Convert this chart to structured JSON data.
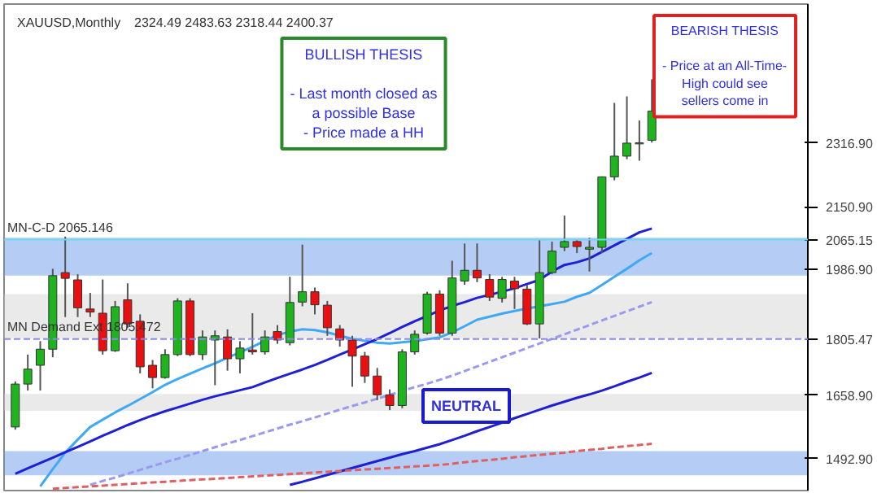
{
  "chart_data": {
    "type": "candlestick",
    "title": "XAUUSD,Monthly",
    "subtitle": "2324.49 2483.63 2318.44 2400.37",
    "categories": [
      null,
      null,
      null,
      null,
      null,
      null,
      null,
      null,
      null,
      null,
      null,
      null,
      null,
      null,
      null,
      null,
      null,
      null,
      null,
      null,
      null,
      null,
      null,
      null,
      null,
      null,
      null,
      null,
      null,
      null,
      null,
      null,
      null,
      null,
      null,
      null,
      null,
      null,
      null,
      null,
      null,
      null,
      null,
      null,
      null,
      null,
      null,
      null,
      null,
      null,
      null,
      null
    ],
    "ohlc": [
      [
        1576,
        1695,
        1569,
        1688
      ],
      [
        1688,
        1765,
        1671,
        1727
      ],
      [
        1737,
        1800,
        1671,
        1779
      ],
      [
        1779,
        1989,
        1758,
        1971
      ],
      [
        1979,
        2073,
        1863,
        1964
      ],
      [
        1960,
        1975,
        1863,
        1887
      ],
      [
        1884,
        1926,
        1863,
        1876
      ],
      [
        1873,
        1961,
        1765,
        1775
      ],
      [
        1775,
        1905,
        1772,
        1890
      ],
      [
        1908,
        1951,
        1835,
        1845
      ],
      [
        1852,
        1870,
        1716,
        1733
      ],
      [
        1737,
        1751,
        1677,
        1705
      ],
      [
        1705,
        1779,
        1702,
        1765
      ],
      [
        1765,
        1912,
        1761,
        1905
      ],
      [
        1905,
        1912,
        1761,
        1765
      ],
      [
        1765,
        1828,
        1751,
        1811
      ],
      [
        1803,
        1828,
        1685,
        1814
      ],
      [
        1811,
        1831,
        1723,
        1754
      ],
      [
        1754,
        1800,
        1716,
        1782
      ],
      [
        1777,
        1873,
        1765,
        1772
      ],
      [
        1772,
        1828,
        1765,
        1811
      ],
      [
        1825,
        1842,
        1793,
        1803
      ],
      [
        1796,
        1968,
        1789,
        1901
      ],
      [
        1902,
        2052,
        1891,
        1929
      ],
      [
        1929,
        1940,
        1870,
        1895
      ],
      [
        1894,
        1905,
        1814,
        1835
      ],
      [
        1832,
        1842,
        1786,
        1803
      ],
      [
        1803,
        1814,
        1681,
        1761
      ],
      [
        1761,
        1772,
        1691,
        1709
      ],
      [
        1709,
        1730,
        1646,
        1660
      ],
      [
        1660,
        1674,
        1620,
        1632
      ],
      [
        1632,
        1779,
        1625,
        1772
      ],
      [
        1772,
        1828,
        1765,
        1818
      ],
      [
        1821,
        1929,
        1817,
        1923
      ],
      [
        1923,
        1933,
        1814,
        1821
      ],
      [
        1821,
        2010,
        1814,
        1965
      ],
      [
        1957,
        2055,
        1947,
        1985
      ],
      [
        1985,
        2055,
        1954,
        1965
      ],
      [
        1961,
        1975,
        1905,
        1915
      ],
      [
        1912,
        1968,
        1901,
        1961
      ],
      [
        1957,
        1968,
        1884,
        1937
      ],
      [
        1936,
        1947,
        1842,
        1845
      ],
      [
        1845,
        2065,
        1807,
        1979
      ],
      [
        1979,
        2060,
        1975,
        2035
      ],
      [
        2045,
        2128,
        2035,
        2060
      ],
      [
        2060,
        2065,
        2030,
        2047
      ],
      [
        2040,
        2070,
        1982,
        2045
      ],
      [
        2045,
        2230,
        2030,
        2229
      ],
      [
        2229,
        2422,
        2220,
        2283
      ],
      [
        2283,
        2439,
        2275,
        2317
      ],
      [
        2315,
        2376,
        2271,
        2318
      ],
      [
        2324.49,
        2483.63,
        2318.44,
        2400.37
      ]
    ],
    "colors": [
      "#1fb41f",
      "#1fb41f",
      "#1fb41f",
      "#1fb41f",
      "#e81010",
      "#e81010",
      "#e81010",
      "#e81010",
      "#1fb41f",
      "#e81010",
      "#e81010",
      "#e81010",
      "#1fb41f",
      "#1fb41f",
      "#e81010",
      "#1fb41f",
      "#1fb41f",
      "#e81010",
      "#1fb41f",
      "#e81010",
      "#1fb41f",
      "#e81010",
      "#1fb41f",
      "#1fb41f",
      "#e81010",
      "#e81010",
      "#e81010",
      "#e81010",
      "#e81010",
      "#e81010",
      "#e81010",
      "#1fb41f",
      "#1fb41f",
      "#1fb41f",
      "#e81010",
      "#1fb41f",
      "#1fb41f",
      "#e81010",
      "#e81010",
      "#1fb41f",
      "#e81010",
      "#e81010",
      "#1fb41f",
      "#1fb41f",
      "#1fb41f",
      "#e81010",
      "#1fb41f",
      "#1fb41f",
      "#1fb41f",
      "#1fb41f",
      "#1fb41f",
      "#1fb41f"
    ],
    "series": [
      {
        "type": "line",
        "color": "#3fa9f5",
        "line_style": "solid",
        "values": [
          null,
          null,
          1421,
          1466,
          1509,
          1543,
          1576,
          1595,
          1614,
          1631,
          1649,
          1667,
          1686,
          1701,
          1715,
          1729,
          1742,
          1757,
          1771,
          1785,
          1801,
          1816,
          1825,
          1831,
          1829,
          1823,
          1814,
          1806,
          1801,
          1796,
          1794,
          1797,
          1800,
          1805,
          1810,
          1823,
          1839,
          1856,
          1864,
          1872,
          1879,
          1885,
          1891,
          1897,
          1903,
          1916,
          1926,
          1947,
          1968,
          1989,
          2011,
          2030
        ]
      },
      {
        "type": "line",
        "color": "#1f1fd6",
        "line_style": "solid",
        "values": [
          1454,
          1468,
          1482,
          1496,
          1510,
          1524,
          1538,
          1553,
          1567,
          1581,
          1594,
          1606,
          1617,
          1627,
          1637,
          1647,
          1656,
          1664,
          1672,
          1680,
          1692,
          1704,
          1715,
          1726,
          1738,
          1751,
          1765,
          1778,
          1792,
          1806,
          1821,
          1837,
          1852,
          1866,
          1880,
          1892,
          1902,
          1913,
          1921,
          1929,
          1938,
          1949,
          1960,
          1982,
          1999,
          2006,
          2016,
          2033,
          2050,
          2067,
          2084,
          2094
        ]
      },
      {
        "type": "line",
        "color": "#9a9af0",
        "line_style": "dashed",
        "values": [
          null,
          null,
          null,
          null,
          null,
          null,
          1425,
          1435,
          1444,
          1454,
          1464,
          1474,
          1484,
          1493,
          1503,
          1513,
          1523,
          1533,
          1542,
          1552,
          1562,
          1572,
          1582,
          1591,
          1601,
          1611,
          1621,
          1631,
          1640,
          1650,
          1660,
          1670,
          1680,
          1689,
          1699,
          1710,
          1722,
          1734,
          1746,
          1758,
          1770,
          1782,
          1794,
          1806,
          1818,
          1830,
          1842,
          1854,
          1866,
          1878,
          1890,
          1902
        ]
      },
      {
        "type": "line",
        "color": "#2020d0",
        "line_style": "solid",
        "values": [
          null,
          null,
          null,
          null,
          null,
          null,
          null,
          null,
          null,
          null,
          null,
          null,
          null,
          null,
          null,
          null,
          null,
          null,
          null,
          null,
          null,
          null,
          1425,
          1433,
          1442,
          1451,
          1460,
          1469,
          1478,
          1487,
          1496,
          1505,
          1513,
          1522,
          1531,
          1542,
          1553,
          1565,
          1576,
          1587,
          1599,
          1610,
          1621,
          1632,
          1642,
          1652,
          1661,
          1671,
          1682,
          1694,
          1705,
          1717
        ]
      },
      {
        "type": "line",
        "color": "#e06060",
        "line_style": "dashed",
        "values": [
          null,
          null,
          null,
          1415,
          1417,
          1419,
          1421,
          1423,
          1425,
          1427,
          1429,
          1431,
          1433,
          1435,
          1437,
          1439,
          1441,
          1443,
          1445,
          1447,
          1449,
          1451,
          1453,
          1455,
          1457,
          1459,
          1461,
          1463,
          1465,
          1467,
          1469,
          1471,
          1473,
          1475,
          1477,
          1480,
          1484,
          1487,
          1490,
          1493,
          1497,
          1500,
          1503,
          1506,
          1509,
          1513,
          1516,
          1519,
          1523,
          1526,
          1529,
          1532
        ]
      }
    ],
    "ylim": [
      1410,
      2680
    ],
    "yticks": [
      {
        "value": 1492.9,
        "label": "1492.90"
      },
      {
        "value": 1658.9,
        "label": "1658.90"
      },
      {
        "value": 1805.47,
        "label": "1805.47"
      },
      {
        "value": 1986.9,
        "label": "1986.90"
      },
      {
        "value": 2065.15,
        "label": "2065.15"
      },
      {
        "value": 2150.9,
        "label": "2150.90"
      },
      {
        "value": 2316.9,
        "label": "2316.90"
      }
    ],
    "tick_labels": "y",
    "ref_lines": [
      {
        "axis": "y",
        "value": 2065.15,
        "label": "MN-C-D 2065.146",
        "color": "#6fd8f0",
        "line_style": "solid"
      },
      {
        "axis": "y",
        "value": 1805.47,
        "label": "MN Demand Ext 1805.472",
        "color": "#8888ee",
        "line_style": "dashed"
      }
    ],
    "bands": [
      {
        "axis": "y",
        "from": 1971,
        "to": 2070,
        "color": "#5b8fe8"
      },
      {
        "axis": "y",
        "from": 1807,
        "to": 1923,
        "color": "#d0d0d0"
      },
      {
        "axis": "y",
        "from": 1618,
        "to": 1662,
        "color": "#d0d0d0"
      },
      {
        "axis": "y",
        "from": 1450,
        "to": 1513,
        "color": "#5b8fe8"
      }
    ],
    "annotations": [
      "BULLISH THESIS\n\n- Last month closed as\na possible Base\n- Price made a HH",
      "BEARISH THESIS\n\n- Price at an All-Time-\nHigh could see\nsellers come in",
      "NEUTRAL"
    ]
  }
}
